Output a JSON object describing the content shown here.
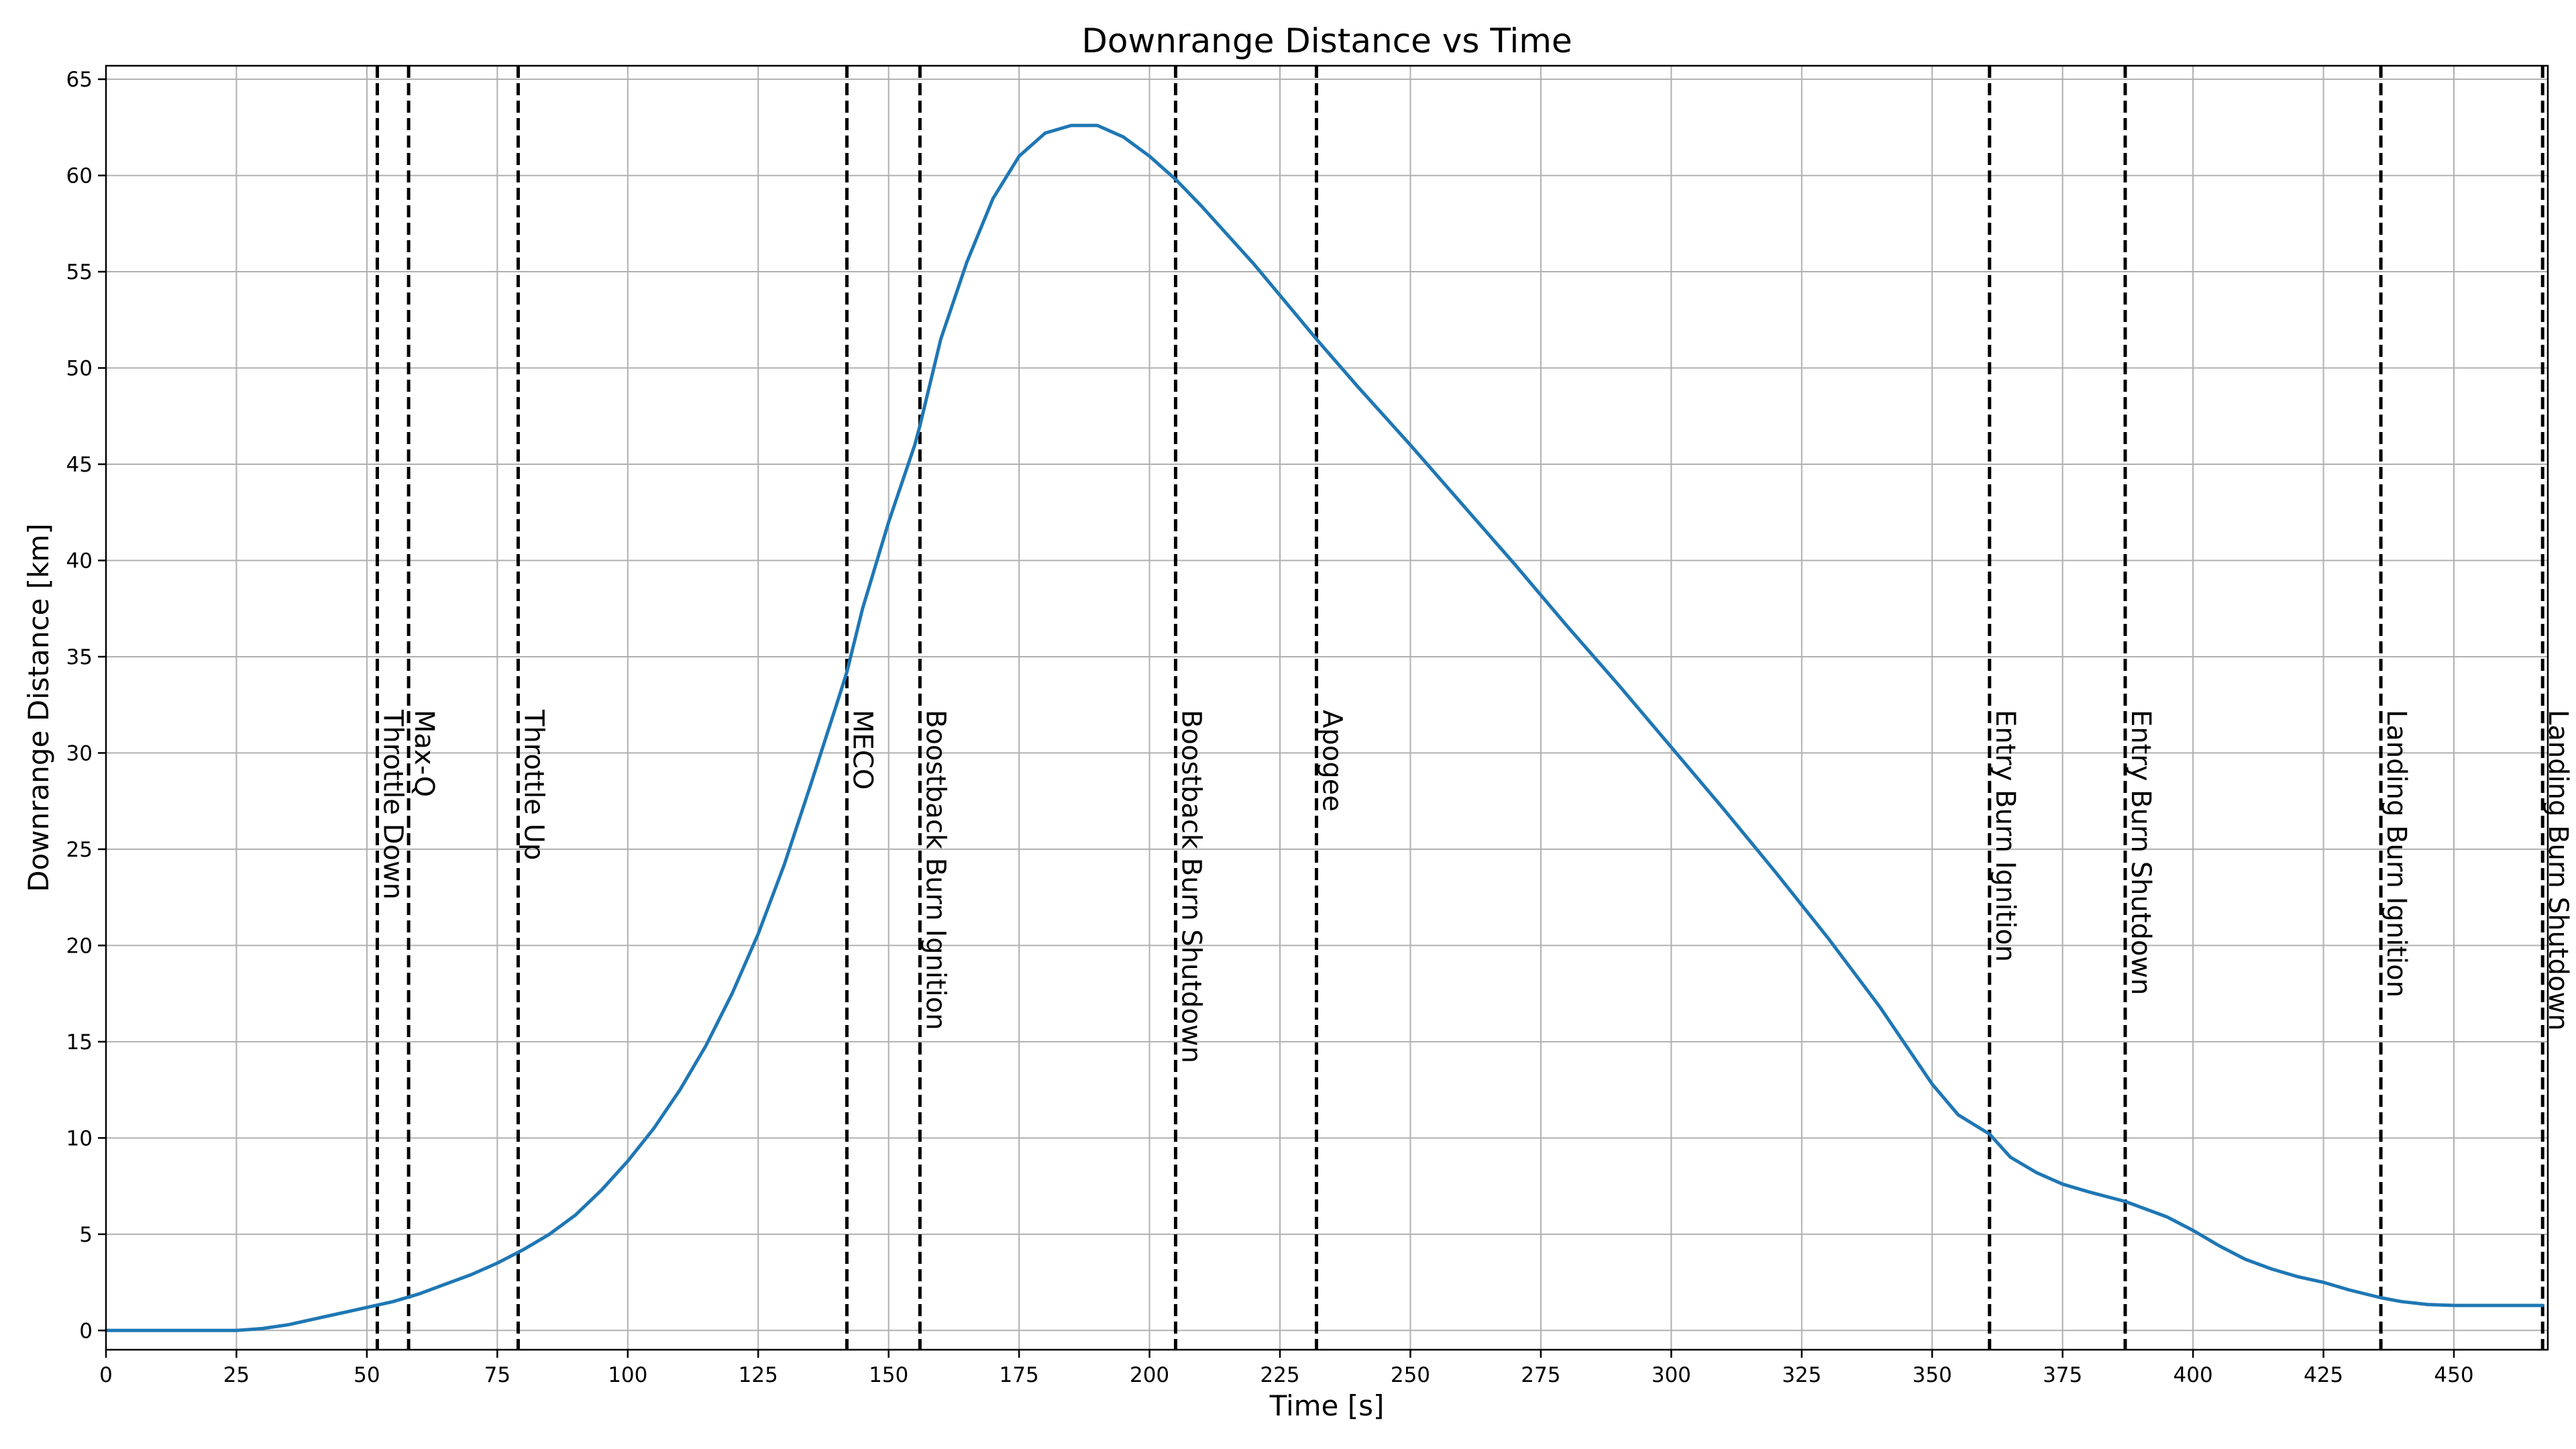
{
  "chart_data": {
    "type": "line",
    "title": "Downrange Distance vs Time",
    "xlabel": "Time [s]",
    "ylabel": "Downrange Distance [km]",
    "xlim": [
      0,
      468
    ],
    "ylim": [
      -1,
      65.7
    ],
    "grid": true,
    "xticks": [
      0,
      25,
      50,
      75,
      100,
      125,
      150,
      175,
      200,
      225,
      250,
      275,
      300,
      325,
      350,
      375,
      400,
      425,
      450
    ],
    "yticks": [
      0,
      5,
      10,
      15,
      20,
      25,
      30,
      35,
      40,
      45,
      50,
      55,
      60,
      65
    ],
    "series": [
      {
        "color": "#1f77b4",
        "x": [
          0,
          25,
          30,
          35,
          40,
          45,
          50,
          55,
          60,
          65,
          70,
          75,
          80,
          85,
          90,
          95,
          100,
          105,
          110,
          115,
          120,
          125,
          130,
          135,
          140,
          142,
          145,
          150,
          155,
          156,
          160,
          165,
          170,
          175,
          180,
          185,
          190,
          195,
          200,
          205,
          210,
          220,
          232,
          240,
          250,
          260,
          270,
          280,
          290,
          300,
          310,
          320,
          330,
          340,
          350,
          355,
          361,
          365,
          370,
          375,
          380,
          387,
          395,
          400,
          405,
          410,
          415,
          420,
          425,
          430,
          436,
          440,
          445,
          450,
          460,
          467
        ],
        "y": [
          0,
          0,
          0.1,
          0.3,
          0.6,
          0.9,
          1.2,
          1.5,
          1.9,
          2.4,
          2.9,
          3.5,
          4.2,
          5.0,
          6.0,
          7.3,
          8.8,
          10.5,
          12.5,
          14.8,
          17.5,
          20.6,
          24.2,
          28.3,
          32.5,
          34.2,
          37.5,
          42.0,
          46.0,
          47.0,
          51.5,
          55.5,
          58.8,
          61.0,
          62.2,
          62.6,
          62.6,
          62.0,
          61.0,
          59.8,
          58.4,
          55.4,
          51.5,
          49.0,
          46.0,
          42.9,
          39.8,
          36.6,
          33.5,
          30.3,
          27.1,
          23.8,
          20.4,
          16.8,
          12.8,
          11.2,
          10.2,
          9.0,
          8.2,
          7.6,
          7.2,
          6.7,
          5.9,
          5.2,
          4.4,
          3.7,
          3.2,
          2.8,
          2.5,
          2.1,
          1.7,
          1.5,
          1.35,
          1.3,
          1.3,
          1.3
        ]
      }
    ],
    "events": [
      {
        "t": 52,
        "label": "Throttle Down"
      },
      {
        "t": 58,
        "label": "Max-Q"
      },
      {
        "t": 79,
        "label": "Throttle Up"
      },
      {
        "t": 142,
        "label": "MECO"
      },
      {
        "t": 156,
        "label": "Boostback Burn Ignition"
      },
      {
        "t": 205,
        "label": "Boostback Burn Shutdown"
      },
      {
        "t": 232,
        "label": "Apogee"
      },
      {
        "t": 361,
        "label": "Entry Burn Ignition"
      },
      {
        "t": 387,
        "label": "Entry Burn Shutdown"
      },
      {
        "t": 436,
        "label": "Landing Burn Ignition"
      },
      {
        "t": 467,
        "label": "Landing Burn Shutdown"
      }
    ]
  }
}
